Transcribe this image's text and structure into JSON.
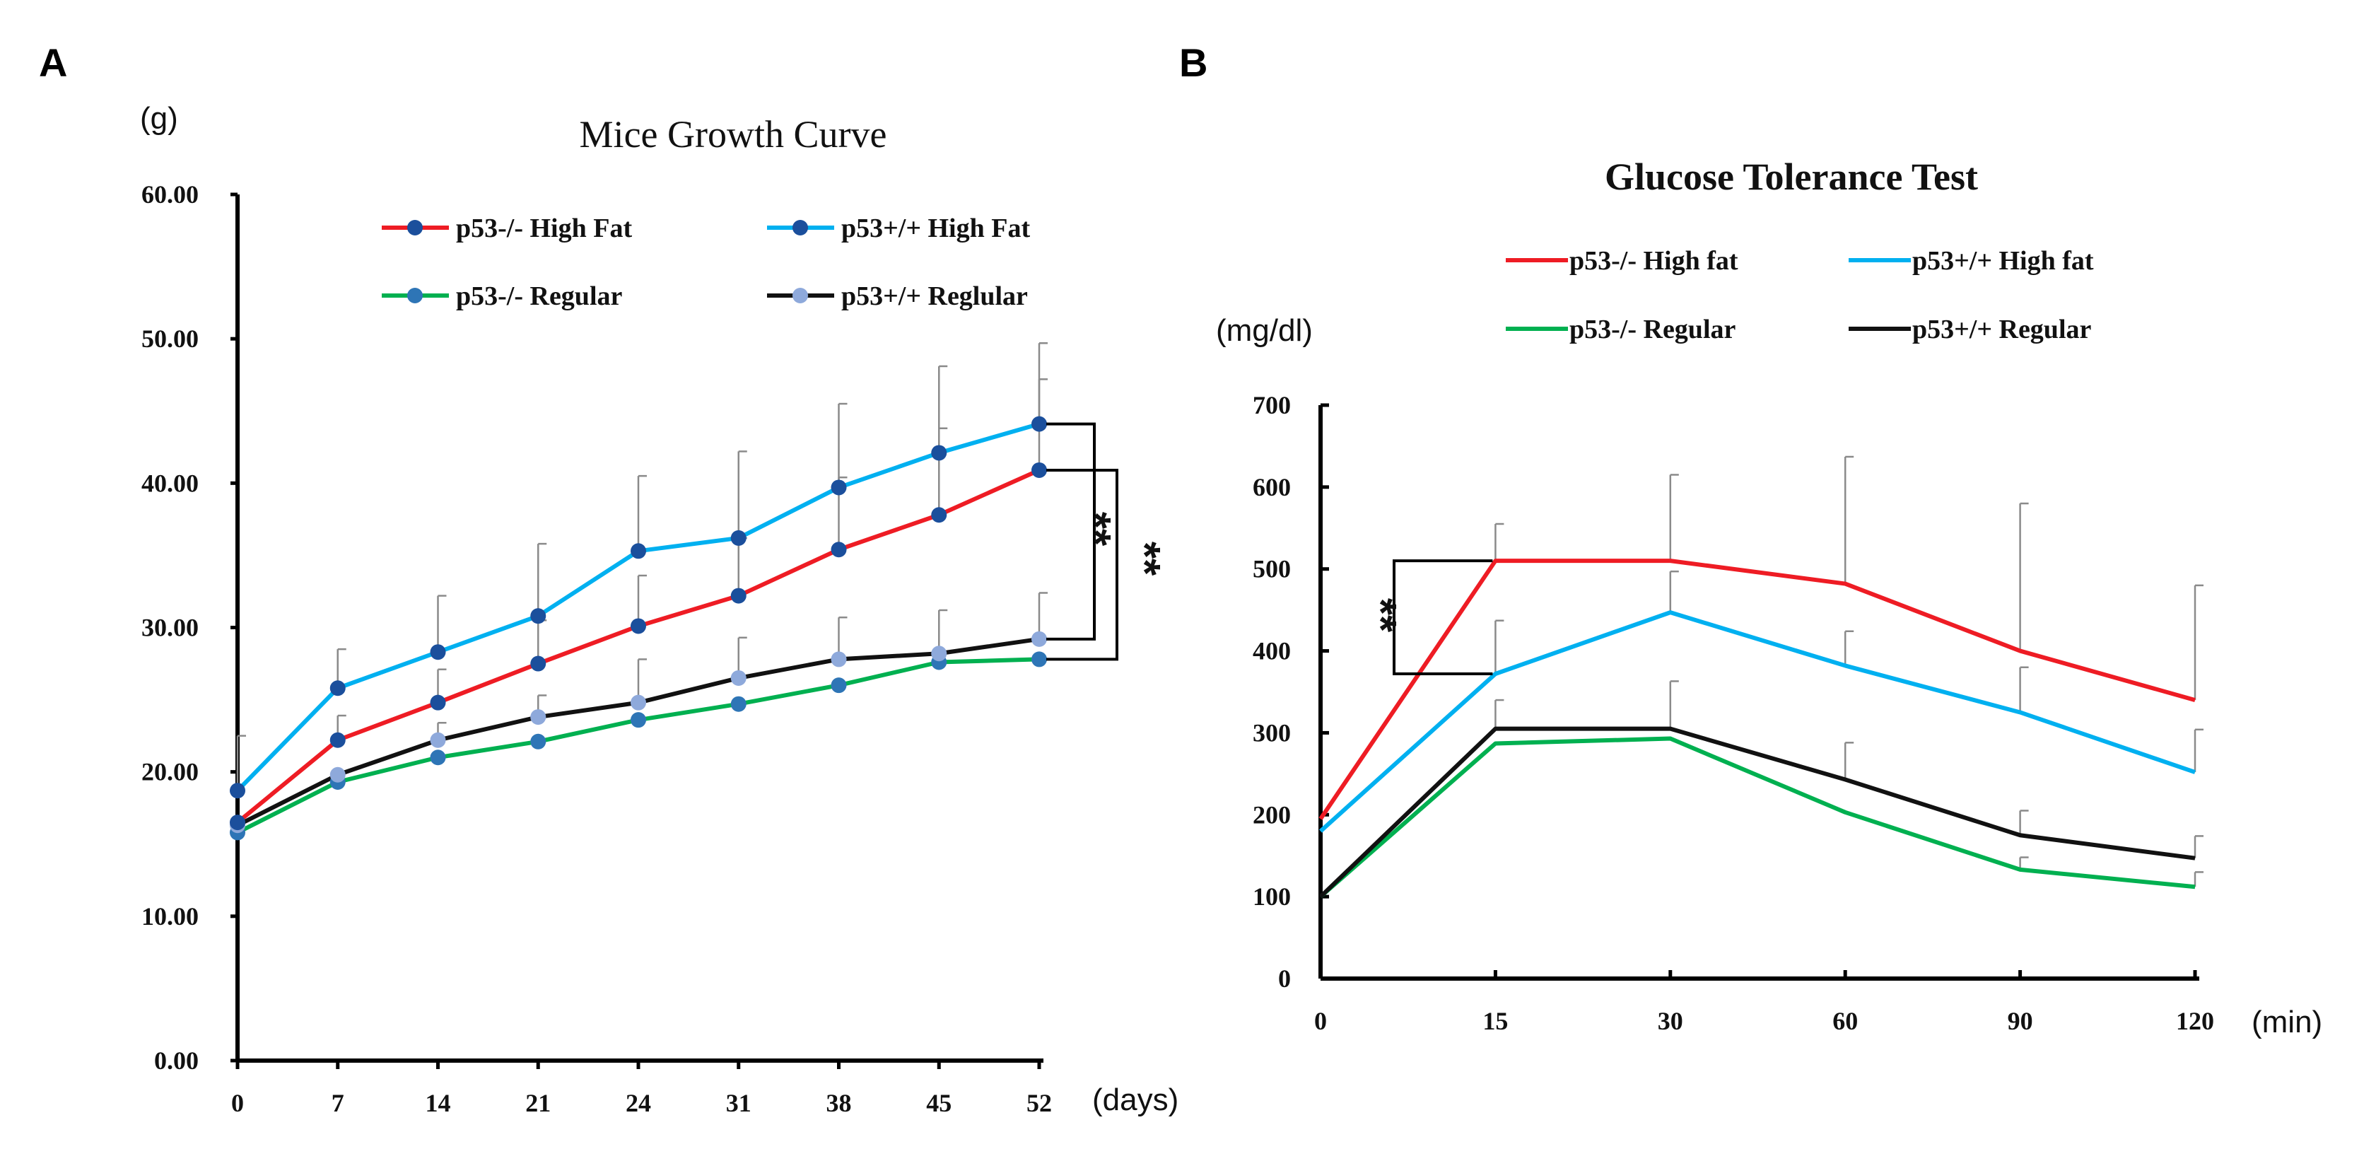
{
  "panels": {
    "a_label": "A",
    "b_label": "B"
  },
  "chart_data": [
    {
      "type": "line",
      "title": "Mice Growth Curve",
      "ylabel": "(g)",
      "xlabel": "(days)",
      "categories": [
        "0",
        "7",
        "14",
        "21",
        "24",
        "31",
        "38",
        "45",
        "52"
      ],
      "ylim": [
        0,
        60
      ],
      "yticks": [
        "0.00",
        "10.00",
        "20.00",
        "30.00",
        "40.00",
        "50.00",
        "60.00"
      ],
      "legend_position": "top",
      "series": [
        {
          "name": "p53-/- High Fat",
          "color": "#ee1c24",
          "marker": "#1b4f9c",
          "values": [
            16.5,
            22.2,
            24.8,
            27.5,
            30.1,
            32.2,
            35.4,
            37.8,
            40.9
          ],
          "errors": [
            0,
            1.7,
            2.3,
            3.0,
            3.5,
            4.0,
            5.0,
            6.0,
            6.3
          ]
        },
        {
          "name": "p53+/+ High Fat",
          "color": "#00b0f0",
          "marker": "#1b4f9c",
          "values": [
            18.7,
            25.8,
            28.3,
            30.8,
            35.3,
            36.2,
            39.7,
            42.1,
            44.1
          ],
          "errors": [
            3.8,
            2.7,
            3.9,
            5.0,
            5.2,
            6.0,
            5.8,
            6.0,
            5.6
          ]
        },
        {
          "name": "p53-/- Regular",
          "color": "#00b050",
          "marker": "#2e75b6",
          "values": [
            15.8,
            19.3,
            21.0,
            22.1,
            23.6,
            24.7,
            26.0,
            27.6,
            27.8
          ],
          "errors": [
            0,
            0,
            0,
            0,
            0,
            0,
            0,
            0,
            0
          ]
        },
        {
          "name": "p53+/+ Reglular",
          "color": "#111111",
          "marker": "#8ea9db",
          "values": [
            16.3,
            19.8,
            22.2,
            23.8,
            24.8,
            26.5,
            27.8,
            28.2,
            29.2
          ],
          "errors": [
            0,
            0,
            1.2,
            1.5,
            3.0,
            2.8,
            2.9,
            3.0,
            3.2
          ]
        }
      ],
      "annotations": [
        "**",
        "**"
      ]
    },
    {
      "type": "line",
      "title": "Glucose Tolerance  Test",
      "ylabel": "(mg/dl)",
      "xlabel": "(min)",
      "categories": [
        "0",
        "15",
        "30",
        "60",
        "90",
        "120"
      ],
      "ylim": [
        0,
        700
      ],
      "yticks": [
        "0",
        "100",
        "200",
        "300",
        "400",
        "500",
        "600",
        "700"
      ],
      "legend_position": "top",
      "series": [
        {
          "name": "p53-/-  High fat",
          "color": "#ee1c24",
          "values": [
            195,
            510,
            510,
            482,
            400,
            340
          ],
          "errors": [
            0,
            45,
            105,
            155,
            180,
            140
          ]
        },
        {
          "name": "p53+/+ High fat",
          "color": "#00b0f0",
          "values": [
            180,
            372,
            447,
            382,
            325,
            252
          ],
          "errors": [
            0,
            65,
            50,
            42,
            55,
            52
          ]
        },
        {
          "name": "p53-/-  Regular",
          "color": "#00b050",
          "values": [
            100,
            287,
            293,
            203,
            133,
            112
          ],
          "errors": [
            0,
            0,
            0,
            0,
            15,
            18
          ]
        },
        {
          "name": "p53+/+ Regular",
          "color": "#111111",
          "values": [
            100,
            305,
            305,
            243,
            175,
            147
          ],
          "errors": [
            0,
            35,
            58,
            45,
            30,
            27
          ]
        }
      ],
      "annotations": [
        "**"
      ]
    }
  ]
}
